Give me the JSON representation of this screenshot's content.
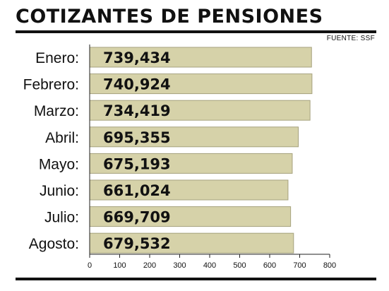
{
  "header": {
    "title": "COTIZANTES DE PENSIONES",
    "source": "FUENTE: SSF"
  },
  "colors": {
    "bar_fill": "#d6d2a9",
    "bar_stroke": "#a6a27e",
    "axis": "#222222",
    "text": "#111111"
  },
  "chart_data": {
    "type": "bar",
    "orientation": "horizontal",
    "title": "COTIZANTES DE PENSIONES",
    "categories": [
      "Enero:",
      "Febrero:",
      "Marzo:",
      "Abril:",
      "Mayo:",
      "Junio:",
      "Julio:",
      "Agosto:"
    ],
    "values": [
      739434,
      740924,
      734419,
      695355,
      675193,
      661024,
      669709,
      679532
    ],
    "value_labels": [
      "739,434",
      "740,924",
      "734,419",
      "695,355",
      "675,193",
      "661,024",
      "669,709",
      "679,532"
    ],
    "axis_unit": "thousands",
    "xlim": [
      0,
      800
    ],
    "xticks": [
      "0",
      "100",
      "200",
      "300",
      "400",
      "500",
      "600",
      "700",
      "800"
    ],
    "grid": false,
    "legend": "none"
  }
}
